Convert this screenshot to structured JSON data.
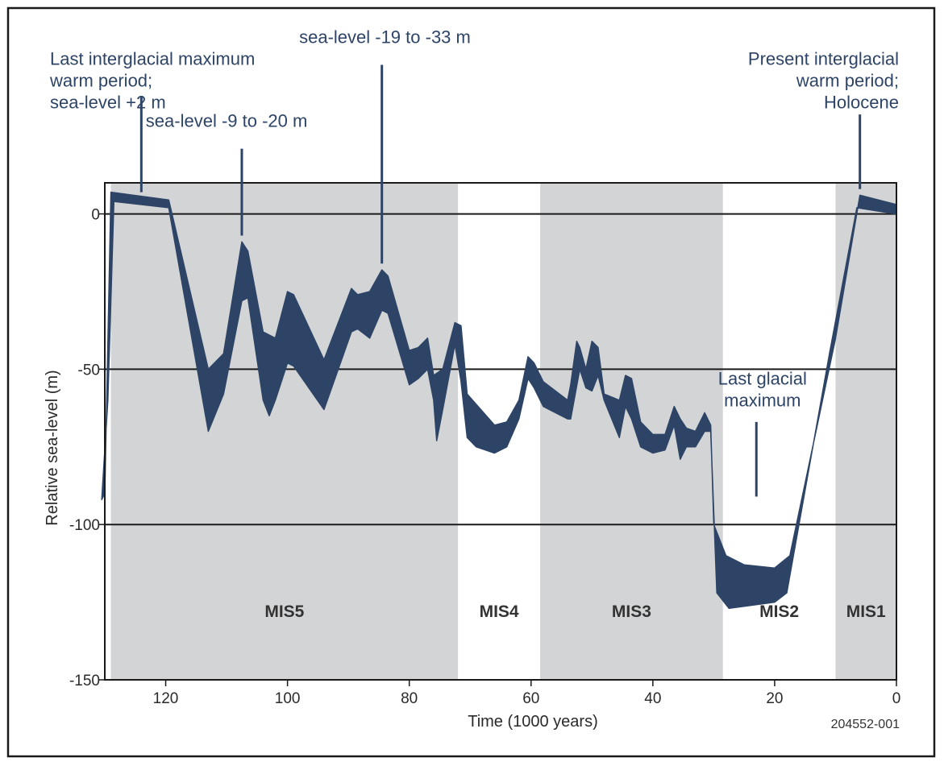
{
  "chart_data": {
    "type": "area",
    "title": "",
    "xlabel": "Time (1000 years)",
    "ylabel": "Relative sea-level (m)",
    "xlim": [
      130,
      0
    ],
    "ylim": [
      -150,
      10
    ],
    "x_reversed": true,
    "grid": true,
    "x_ticks": [
      120,
      100,
      80,
      60,
      40,
      20,
      0
    ],
    "y_ticks": [
      0,
      -50,
      -100,
      -150
    ],
    "band_color": "#2d4466",
    "stage_shade_color": "#d3d4d6",
    "stages": [
      {
        "label": "MIS5",
        "x_start": 129,
        "x_end": 72,
        "shaded": true
      },
      {
        "label": "MIS4",
        "x_start": 72,
        "x_end": 58.5,
        "shaded": false
      },
      {
        "label": "MIS3",
        "x_start": 58.5,
        "x_end": 28.5,
        "shaded": true
      },
      {
        "label": "MIS2",
        "x_start": 28.5,
        "x_end": 10,
        "shaded": false
      },
      {
        "label": "MIS1",
        "x_start": 10,
        "x_end": 0,
        "shaded": true
      }
    ],
    "series": [
      {
        "upper": [
          {
            "x": 130,
            "y": -90
          },
          {
            "x": 129,
            "y": 7
          },
          {
            "x": 119.5,
            "y": 4.5
          },
          {
            "x": 113,
            "y": -50
          },
          {
            "x": 110.5,
            "y": -45
          },
          {
            "x": 107.5,
            "y": -9
          },
          {
            "x": 106.5,
            "y": -12
          },
          {
            "x": 104,
            "y": -38
          },
          {
            "x": 102,
            "y": -40
          },
          {
            "x": 100,
            "y": -25
          },
          {
            "x": 99,
            "y": -26
          },
          {
            "x": 94,
            "y": -47
          },
          {
            "x": 89.5,
            "y": -24
          },
          {
            "x": 88.5,
            "y": -26
          },
          {
            "x": 86.5,
            "y": -25
          },
          {
            "x": 84.5,
            "y": -18
          },
          {
            "x": 83.5,
            "y": -20
          },
          {
            "x": 80,
            "y": -44
          },
          {
            "x": 78.5,
            "y": -43
          },
          {
            "x": 77,
            "y": -40
          },
          {
            "x": 76,
            "y": -52
          },
          {
            "x": 74.5,
            "y": -50
          },
          {
            "x": 72.5,
            "y": -35
          },
          {
            "x": 71.5,
            "y": -36
          },
          {
            "x": 70.5,
            "y": -58
          },
          {
            "x": 66,
            "y": -68
          },
          {
            "x": 64,
            "y": -67
          },
          {
            "x": 62,
            "y": -60
          },
          {
            "x": 60.5,
            "y": -46
          },
          {
            "x": 59.5,
            "y": -48
          },
          {
            "x": 58,
            "y": -54
          },
          {
            "x": 54,
            "y": -60
          },
          {
            "x": 53.5,
            "y": -55
          },
          {
            "x": 52.5,
            "y": -41
          },
          {
            "x": 52,
            "y": -43
          },
          {
            "x": 51,
            "y": -50
          },
          {
            "x": 50,
            "y": -41
          },
          {
            "x": 49,
            "y": -43
          },
          {
            "x": 48,
            "y": -58
          },
          {
            "x": 45.5,
            "y": -60
          },
          {
            "x": 44.5,
            "y": -52
          },
          {
            "x": 43.5,
            "y": -53
          },
          {
            "x": 42,
            "y": -67
          },
          {
            "x": 40,
            "y": -71
          },
          {
            "x": 38,
            "y": -71
          },
          {
            "x": 36.5,
            "y": -62
          },
          {
            "x": 35.5,
            "y": -66
          },
          {
            "x": 34.5,
            "y": -69
          },
          {
            "x": 33,
            "y": -70
          },
          {
            "x": 31.5,
            "y": -64
          },
          {
            "x": 30.5,
            "y": -68
          },
          {
            "x": 30,
            "y": -100
          },
          {
            "x": 28,
            "y": -110
          },
          {
            "x": 25,
            "y": -113
          },
          {
            "x": 20,
            "y": -114
          },
          {
            "x": 17.5,
            "y": -110
          },
          {
            "x": 10,
            "y": -40
          },
          {
            "x": 6,
            "y": 6
          },
          {
            "x": 0,
            "y": 3
          }
        ],
        "lower": [
          {
            "x": 0,
            "y": 0
          },
          {
            "x": 6.5,
            "y": 2
          },
          {
            "x": 11,
            "y": -45
          },
          {
            "x": 18,
            "y": -122
          },
          {
            "x": 20,
            "y": -125
          },
          {
            "x": 27.5,
            "y": -127
          },
          {
            "x": 29.5,
            "y": -122
          },
          {
            "x": 30.5,
            "y": -70
          },
          {
            "x": 31.5,
            "y": -70
          },
          {
            "x": 33,
            "y": -75
          },
          {
            "x": 34.5,
            "y": -75
          },
          {
            "x": 35.5,
            "y": -79
          },
          {
            "x": 36.5,
            "y": -68
          },
          {
            "x": 38,
            "y": -76
          },
          {
            "x": 40,
            "y": -77
          },
          {
            "x": 42,
            "y": -75
          },
          {
            "x": 43.5,
            "y": -66
          },
          {
            "x": 44.5,
            "y": -62
          },
          {
            "x": 45.5,
            "y": -72
          },
          {
            "x": 48,
            "y": -60
          },
          {
            "x": 49,
            "y": -52
          },
          {
            "x": 50,
            "y": -57
          },
          {
            "x": 51,
            "y": -56
          },
          {
            "x": 52,
            "y": -50
          },
          {
            "x": 53.5,
            "y": -66
          },
          {
            "x": 54,
            "y": -66
          },
          {
            "x": 58,
            "y": -62
          },
          {
            "x": 59.5,
            "y": -56
          },
          {
            "x": 60.5,
            "y": -53
          },
          {
            "x": 62,
            "y": -66
          },
          {
            "x": 64,
            "y": -75
          },
          {
            "x": 66,
            "y": -77
          },
          {
            "x": 69,
            "y": -75
          },
          {
            "x": 70.5,
            "y": -72
          },
          {
            "x": 71.5,
            "y": -54
          },
          {
            "x": 72.5,
            "y": -42
          },
          {
            "x": 74.5,
            "y": -63
          },
          {
            "x": 75.5,
            "y": -73
          },
          {
            "x": 76,
            "y": -60
          },
          {
            "x": 77,
            "y": -50
          },
          {
            "x": 78.5,
            "y": -53
          },
          {
            "x": 80,
            "y": -55
          },
          {
            "x": 83.5,
            "y": -32
          },
          {
            "x": 84.5,
            "y": -31
          },
          {
            "x": 86.5,
            "y": -40
          },
          {
            "x": 88.5,
            "y": -37
          },
          {
            "x": 89.5,
            "y": -38
          },
          {
            "x": 94,
            "y": -63
          },
          {
            "x": 99,
            "y": -49
          },
          {
            "x": 100,
            "y": -48
          },
          {
            "x": 102,
            "y": -60
          },
          {
            "x": 103,
            "y": -65
          },
          {
            "x": 104,
            "y": -60
          },
          {
            "x": 106.5,
            "y": -27
          },
          {
            "x": 107.5,
            "y": -28
          },
          {
            "x": 110.5,
            "y": -58
          },
          {
            "x": 113,
            "y": -70
          },
          {
            "x": 119.5,
            "y": 2
          },
          {
            "x": 128.5,
            "y": 4
          },
          {
            "x": 129.5,
            "y": -60
          },
          {
            "x": 130.5,
            "y": -92
          }
        ]
      }
    ],
    "annotations": [
      {
        "lines": [
          "Last interglacial maximum",
          "warm period;",
          "sea-level +2 m"
        ],
        "anchor": "start",
        "text_x": 130,
        "text_y": 48,
        "leader": {
          "x": 124,
          "y_top": 38,
          "y_bottom": 7
        }
      },
      {
        "lines": [
          "sea-level -9 to -20 m"
        ],
        "anchor": "middle",
        "text_x": 110,
        "text_y": 28,
        "leader": {
          "x": 107.5,
          "y_top": 21,
          "y_bottom": -7
        }
      },
      {
        "lines": [
          "sea-level -19 to -33 m"
        ],
        "anchor": "middle",
        "text_x": 84,
        "text_y": 55,
        "leader": {
          "x": 84.5,
          "y_top": 48,
          "y_bottom": -16
        }
      },
      {
        "lines": [
          "Present interglacial",
          "warm period;",
          "Holocene"
        ],
        "anchor": "end",
        "text_x": 0,
        "text_y": 48,
        "leader": {
          "x": 6,
          "y_top": 32,
          "y_bottom": 8
        }
      },
      {
        "lines": [
          "Last glacial",
          "maximum"
        ],
        "anchor": "middle",
        "text_x": 22,
        "text_y": -55,
        "leader": {
          "x": 23,
          "y_top": -67,
          "y_bottom": -91
        }
      }
    ],
    "figure_id": "204552-001"
  }
}
